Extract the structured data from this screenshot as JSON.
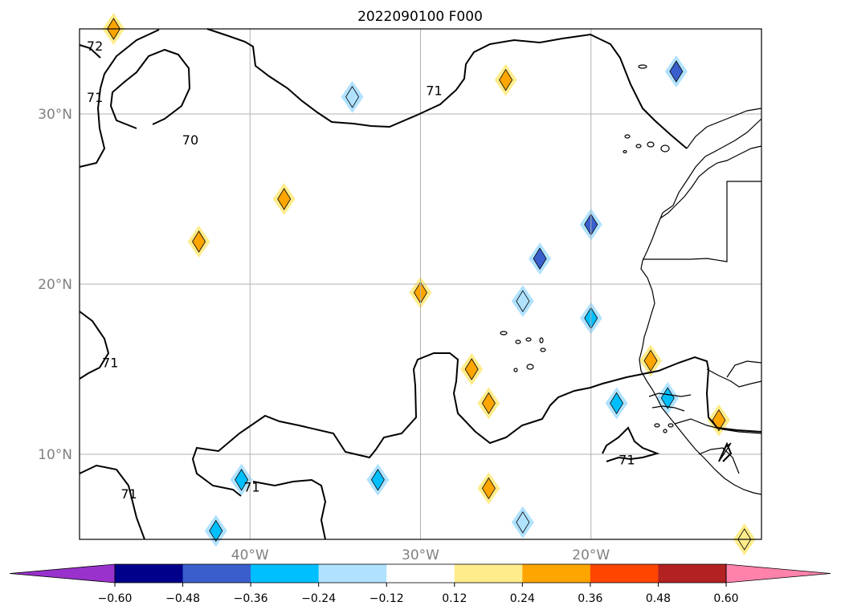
{
  "chart_data": {
    "type": "contour-map",
    "title": "2022090100 F000",
    "projection": "lat-lon",
    "xlim": [
      -50,
      -10
    ],
    "ylim": [
      5,
      35
    ],
    "grid": true,
    "x_ticks": [
      {
        "value": -40,
        "label": "40°W"
      },
      {
        "value": -30,
        "label": "30°W"
      },
      {
        "value": -20,
        "label": "20°W"
      }
    ],
    "y_ticks": [
      {
        "value": 10,
        "label": "10°N"
      },
      {
        "value": 20,
        "label": "20°N"
      },
      {
        "value": 30,
        "label": "30°N"
      }
    ],
    "colorbar": {
      "orientation": "horizontal",
      "extend": "both",
      "levels": [
        -0.6,
        -0.48,
        -0.36,
        -0.24,
        -0.12,
        0.12,
        0.24,
        0.36,
        0.48,
        0.6
      ],
      "tick_labels": [
        "−0.60",
        "−0.48",
        "−0.36",
        "−0.24",
        "−0.12",
        "0.12",
        "0.24",
        "0.36",
        "0.48",
        "0.60"
      ],
      "colors": [
        "#9932cc",
        "#00008b",
        "#3a5fcd",
        "#00bfff",
        "#b0e2ff",
        "#ffffff",
        "#ffec8b",
        "#ffa500",
        "#ff4500",
        "#b22222",
        "#ff82ab"
      ]
    },
    "contour_labels": [
      {
        "text": "72",
        "lon": -49.1,
        "lat": 34.0
      },
      {
        "text": "71",
        "lon": -49.1,
        "lat": 31.0
      },
      {
        "text": "70",
        "lon": -43.5,
        "lat": 28.5
      },
      {
        "text": "71",
        "lon": -29.2,
        "lat": 31.4
      },
      {
        "text": "71",
        "lon": -48.2,
        "lat": 15.4
      },
      {
        "text": "71",
        "lon": -47.1,
        "lat": 7.7
      },
      {
        "text": "71",
        "lon": -39.9,
        "lat": 8.1
      },
      {
        "text": "71",
        "lon": -17.9,
        "lat": 9.7
      }
    ],
    "anomalies": [
      {
        "lon": -43.0,
        "lat": 22.5,
        "value": 0.3
      },
      {
        "lon": -38.0,
        "lat": 25.0,
        "value": 0.3
      },
      {
        "lon": -30.0,
        "lat": 19.5,
        "value": 0.3
      },
      {
        "lon": -25.0,
        "lat": 32.0,
        "value": 0.3
      },
      {
        "lon": -27.0,
        "lat": 15.0,
        "value": 0.3
      },
      {
        "lon": -26.0,
        "lat": 13.0,
        "value": 0.3
      },
      {
        "lon": -26.0,
        "lat": 8.0,
        "value": 0.3
      },
      {
        "lon": -16.5,
        "lat": 15.5,
        "value": 0.3
      },
      {
        "lon": -12.5,
        "lat": 12.0,
        "value": 0.3
      },
      {
        "lon": -11.0,
        "lat": 5.0,
        "value": 0.2
      },
      {
        "lon": -48.0,
        "lat": 35.0,
        "value": 0.3
      },
      {
        "lon": -34.0,
        "lat": 31.0,
        "value": -0.2
      },
      {
        "lon": -15.0,
        "lat": 32.5,
        "value": -0.4
      },
      {
        "lon": -20.0,
        "lat": 23.5,
        "value": -0.4
      },
      {
        "lon": -23.0,
        "lat": 21.5,
        "value": -0.4
      },
      {
        "lon": -24.0,
        "lat": 19.0,
        "value": -0.2
      },
      {
        "lon": -20.0,
        "lat": 18.0,
        "value": -0.3
      },
      {
        "lon": -18.5,
        "lat": 13.0,
        "value": -0.3
      },
      {
        "lon": -15.5,
        "lat": 13.3,
        "value": -0.3
      },
      {
        "lon": -32.5,
        "lat": 8.5,
        "value": -0.3
      },
      {
        "lon": -40.5,
        "lat": 8.5,
        "value": -0.3
      },
      {
        "lon": -42.0,
        "lat": 5.5,
        "value": -0.3
      },
      {
        "lon": -24.0,
        "lat": 6.0,
        "value": -0.2
      }
    ]
  }
}
